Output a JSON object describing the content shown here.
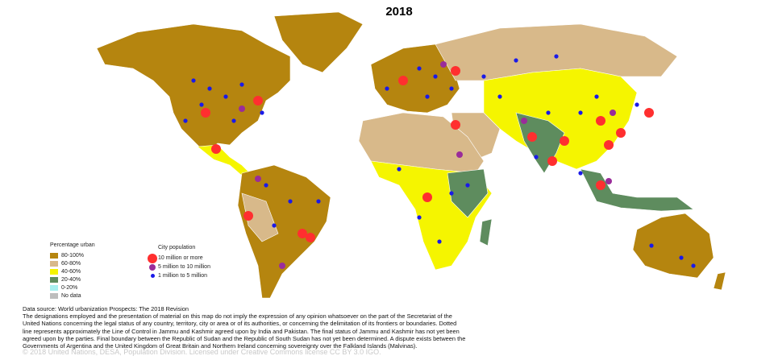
{
  "title": "2018",
  "legend_urban": {
    "title": "Percentage urban",
    "items": [
      {
        "label": "80-100%",
        "color": "#b5850f"
      },
      {
        "label": "60-80%",
        "color": "#d8b98a"
      },
      {
        "label": "40-60%",
        "color": "#f5f500"
      },
      {
        "label": "20-40%",
        "color": "#5e8c5e"
      },
      {
        "label": "0-20%",
        "color": "#a8f0f0"
      },
      {
        "label": "No data",
        "color": "#bdbdbd"
      }
    ]
  },
  "legend_city": {
    "title": "City population",
    "items": [
      {
        "label": "10 million or more",
        "color": "#ff2f2f"
      },
      {
        "label": "5 million to 10 million",
        "color": "#9a2c9a"
      },
      {
        "label": "1 million to 5 million",
        "color": "#1a1ae8"
      }
    ]
  },
  "source": "Data source: World urbanization Prospects: The 2018 Revision",
  "disclaimer_lines": [
    "The designations employed and the presentation of material on this map do not imply the expression of any opinion whatsoever on the part of the Secretariat of the",
    "United Nations concerning the legal status of any country, territory, city or area or of its authorities, or concerning the delimitation of its frontiers or boundaries. Dotted",
    "line represents approximately the Line of Control in Jammu and Kashmir agreed upon by India and Pakistan. The final status of Jammu and Kashmir has not yet been",
    "agreed upon by the parties. Final boundary between the Republic of Sudan and the Republic of South Sudan has not yet been determined. A dispute exists between the",
    "Governments of Argentina and the United Kingdom of Great Britain and Northern Ireland concerning sovereignty over the Falkland Islands (Malvinas)."
  ],
  "copyright": "© 2018 United Nations, DESA, Population Division. Licensed under Creative Commons license CC BY 3.0 IGO."
}
